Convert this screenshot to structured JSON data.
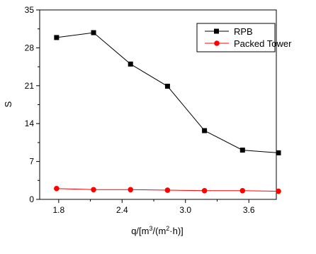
{
  "chart_data": {
    "type": "line",
    "xlabel_parts": [
      "q/[m",
      "3",
      "/(m",
      "2",
      "·h)]"
    ],
    "ylabel": "S",
    "xlim": [
      1.62,
      3.86
    ],
    "ylim": [
      0,
      35
    ],
    "xticks": [
      "1.8",
      "2.4",
      "3.0",
      "3.6"
    ],
    "xtick_values": [
      1.8,
      2.4,
      3.0,
      3.6
    ],
    "yticks": [
      "0",
      "7",
      "14",
      "21",
      "28",
      "35"
    ],
    "ytick_values": [
      0,
      7,
      14,
      21,
      28,
      35
    ],
    "grid": false,
    "legend_position": "top-right",
    "series": [
      {
        "name": "RPB",
        "marker": "square",
        "color": "#000000",
        "x": [
          1.78,
          2.13,
          2.48,
          2.83,
          3.18,
          3.54,
          3.88
        ],
        "y": [
          29.9,
          30.8,
          25.0,
          20.9,
          12.7,
          9.1,
          8.6
        ]
      },
      {
        "name": "Packed Tower",
        "marker": "circle",
        "color": "#ff0000",
        "x": [
          1.78,
          2.13,
          2.48,
          2.83,
          3.18,
          3.54,
          3.88
        ],
        "y": [
          2.0,
          1.8,
          1.8,
          1.7,
          1.6,
          1.6,
          1.5
        ]
      }
    ]
  }
}
